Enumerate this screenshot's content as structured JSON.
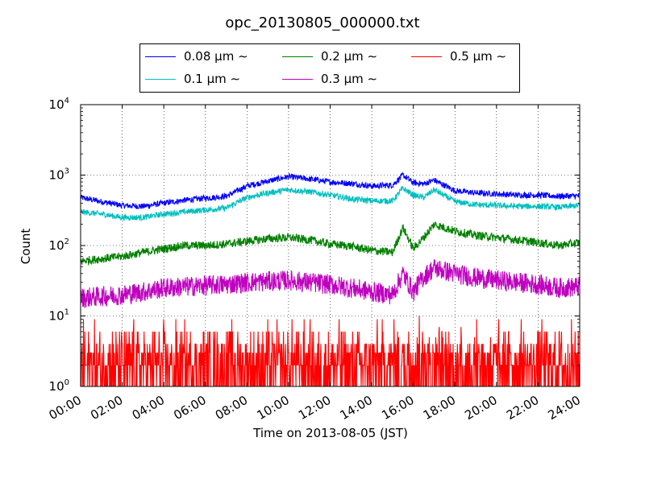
{
  "chart_data": {
    "type": "line",
    "title": "opc_20130805_000000.txt",
    "xlabel": "Time on 2013-08-05 (JST)",
    "ylabel": "Count",
    "yscale": "log",
    "ylim": [
      1,
      10000
    ],
    "xlim": [
      "00:00",
      "24:00"
    ],
    "x_ticks": [
      "00:00",
      "02:00",
      "04:00",
      "06:00",
      "08:00",
      "10:00",
      "12:00",
      "14:00",
      "16:00",
      "18:00",
      "20:00",
      "22:00",
      "24:00"
    ],
    "y_ticks": [
      {
        "base": "10",
        "exp": "0"
      },
      {
        "base": "10",
        "exp": "1"
      },
      {
        "base": "10",
        "exp": "2"
      },
      {
        "base": "10",
        "exp": "3"
      },
      {
        "base": "10",
        "exp": "4"
      }
    ],
    "grid": true,
    "legend_position": "top-center",
    "x": [
      "00:00",
      "01:00",
      "02:00",
      "03:00",
      "04:00",
      "05:00",
      "06:00",
      "07:00",
      "08:00",
      "09:00",
      "10:00",
      "11:00",
      "12:00",
      "13:00",
      "14:00",
      "15:00",
      "15:30",
      "16:00",
      "16:30",
      "17:00",
      "18:00",
      "19:00",
      "20:00",
      "21:00",
      "22:00",
      "23:00",
      "24:00"
    ],
    "series": [
      {
        "name": "0.08 μm ∼",
        "color": "#0000ff",
        "values": [
          480,
          420,
          370,
          360,
          400,
          440,
          470,
          500,
          700,
          820,
          950,
          880,
          800,
          760,
          700,
          720,
          1000,
          780,
          750,
          850,
          600,
          560,
          540,
          520,
          520,
          500,
          510
        ]
      },
      {
        "name": "0.1 μm ∼",
        "color": "#00bfbf",
        "values": [
          300,
          280,
          250,
          250,
          280,
          300,
          320,
          340,
          480,
          560,
          620,
          580,
          520,
          460,
          430,
          430,
          650,
          520,
          480,
          620,
          420,
          380,
          370,
          360,
          360,
          350,
          370
        ]
      },
      {
        "name": "0.2 μm ∼",
        "color": "#008000",
        "values": [
          60,
          65,
          70,
          80,
          90,
          100,
          100,
          105,
          115,
          125,
          130,
          120,
          105,
          98,
          85,
          80,
          180,
          90,
          130,
          200,
          160,
          140,
          130,
          120,
          110,
          100,
          110
        ]
      },
      {
        "name": "0.3 μm ∼",
        "color": "#bf00bf",
        "values": [
          18,
          19,
          20,
          22,
          25,
          26,
          27,
          28,
          30,
          31,
          32,
          30,
          28,
          25,
          22,
          20,
          40,
          22,
          36,
          48,
          40,
          35,
          32,
          30,
          28,
          25,
          26
        ]
      },
      {
        "name": "0.5 μm ∼",
        "color": "#ff0000",
        "values": [
          2,
          2,
          2,
          2,
          2,
          2,
          2,
          2,
          2,
          2,
          2,
          2,
          2,
          2,
          2,
          2,
          3,
          3,
          3,
          3,
          2,
          2,
          2,
          2,
          2,
          2,
          2
        ]
      }
    ]
  }
}
